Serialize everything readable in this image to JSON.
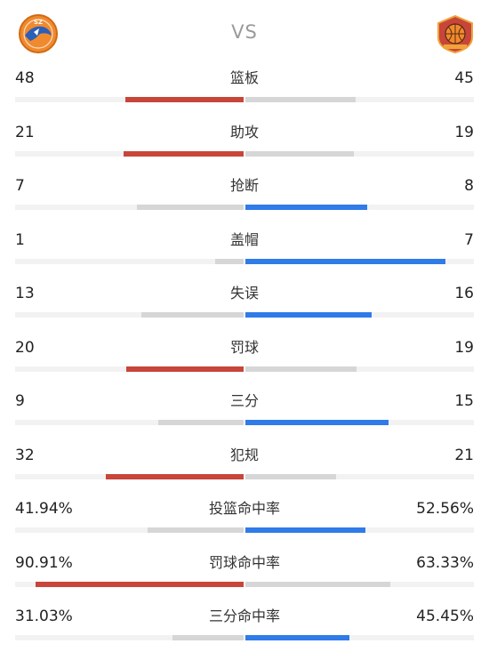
{
  "header": {
    "vs_label": "VS",
    "left_team_icon": "orange-team-logo-icon",
    "right_team_icon": "basketball-team-logo-icon"
  },
  "colors": {
    "red": "#c8453a",
    "blue": "#2f7be8",
    "gray": "#d6d6d6",
    "track": "#f2f2f2"
  },
  "stats": [
    {
      "label": "篮板",
      "left": "48",
      "right": "45",
      "left_share": 0.516,
      "right_share": 0.484,
      "leader": "left"
    },
    {
      "label": "助攻",
      "left": "21",
      "right": "19",
      "left_share": 0.525,
      "right_share": 0.475,
      "leader": "left"
    },
    {
      "label": "抢断",
      "left": "7",
      "right": "8",
      "left_share": 0.467,
      "right_share": 0.533,
      "leader": "right"
    },
    {
      "label": "盖帽",
      "left": "1",
      "right": "7",
      "left_share": 0.125,
      "right_share": 0.875,
      "leader": "right"
    },
    {
      "label": "失误",
      "left": "13",
      "right": "16",
      "left_share": 0.448,
      "right_share": 0.552,
      "leader": "right"
    },
    {
      "label": "罚球",
      "left": "20",
      "right": "19",
      "left_share": 0.513,
      "right_share": 0.487,
      "leader": "left"
    },
    {
      "label": "三分",
      "left": "9",
      "right": "15",
      "left_share": 0.375,
      "right_share": 0.625,
      "leader": "right"
    },
    {
      "label": "犯规",
      "left": "32",
      "right": "21",
      "left_share": 0.604,
      "right_share": 0.396,
      "leader": "left"
    },
    {
      "label": "投篮命中率",
      "left": "41.94%",
      "right": "52.56%",
      "left_share": 0.4194,
      "right_share": 0.5256,
      "leader": "right"
    },
    {
      "label": "罚球命中率",
      "left": "90.91%",
      "right": "63.33%",
      "left_share": 0.9091,
      "right_share": 0.6333,
      "leader": "left"
    },
    {
      "label": "三分命中率",
      "left": "31.03%",
      "right": "45.45%",
      "left_share": 0.3103,
      "right_share": 0.4545,
      "leader": "right"
    }
  ]
}
